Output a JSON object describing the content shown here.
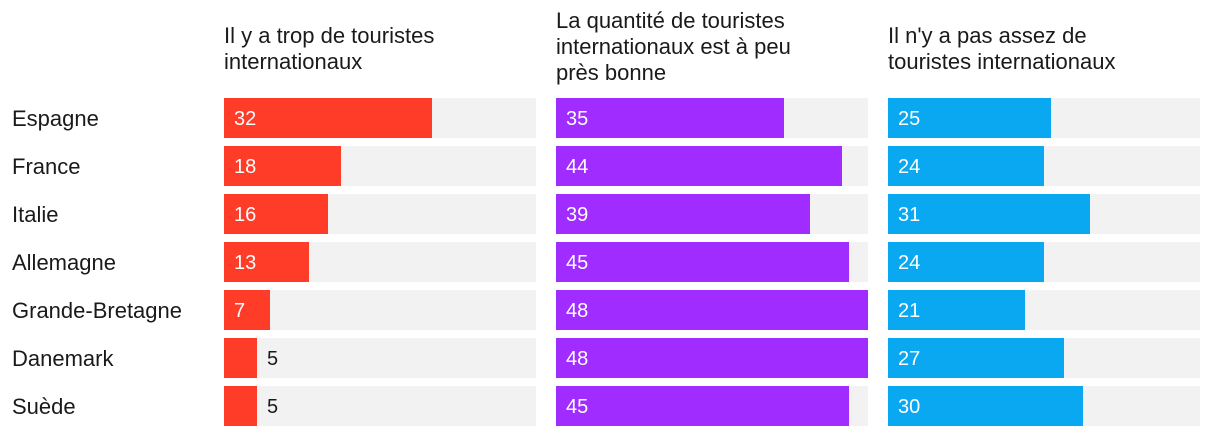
{
  "chart_data": {
    "type": "bar",
    "orientation": "horizontal",
    "layout": "small-multiples",
    "categories": [
      "Espagne",
      "France",
      "Italie",
      "Allemagne",
      "Grande-Bretagne",
      "Danemark",
      "Suède"
    ],
    "xlim": [
      0,
      48
    ],
    "series": [
      {
        "name": "Il y a trop de touristes internationaux",
        "title_lines": [
          "Il y a trop de touristes",
          "internationaux"
        ],
        "color": "#ff3c28",
        "values": [
          32,
          18,
          16,
          13,
          7,
          5,
          5
        ]
      },
      {
        "name": "La quantité de touristes internationaux est à peu près bonne",
        "title_lines": [
          "La quantité de touristes",
          "internationaux est à peu",
          "près bonne"
        ],
        "color": "#a02cff",
        "values": [
          35,
          44,
          39,
          45,
          48,
          48,
          45
        ]
      },
      {
        "name": "Il n'y a pas assez de touristes internationaux",
        "title_lines": [
          "Il n'y a pas assez de",
          "touristes internationaux"
        ],
        "color": "#0aa8f0",
        "values": [
          25,
          24,
          31,
          24,
          21,
          27,
          30
        ]
      }
    ],
    "track_color": "#f2f2f2"
  }
}
